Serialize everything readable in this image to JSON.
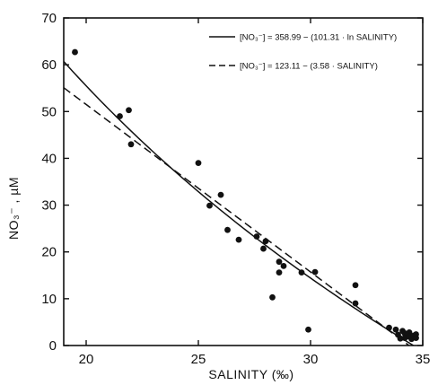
{
  "chart_data": {
    "type": "scatter",
    "xlabel": "SALINITY (‰)",
    "ylabel": "NO₃⁻ , µM",
    "xlim": [
      19,
      35
    ],
    "ylim": [
      0,
      70
    ],
    "xticks": [
      20,
      25,
      30,
      35
    ],
    "yticks": [
      0,
      10,
      20,
      30,
      40,
      50,
      60,
      70
    ],
    "grid": false,
    "legend_position": "top-right",
    "points": [
      {
        "x": 19.5,
        "y": 62.7
      },
      {
        "x": 21.5,
        "y": 49.0
      },
      {
        "x": 21.9,
        "y": 50.3
      },
      {
        "x": 22.0,
        "y": 43.0
      },
      {
        "x": 25.0,
        "y": 39.0
      },
      {
        "x": 25.5,
        "y": 29.9
      },
      {
        "x": 26.0,
        "y": 32.2
      },
      {
        "x": 26.3,
        "y": 24.7
      },
      {
        "x": 26.8,
        "y": 22.6
      },
      {
        "x": 27.6,
        "y": 23.3
      },
      {
        "x": 27.9,
        "y": 20.7
      },
      {
        "x": 28.0,
        "y": 22.3
      },
      {
        "x": 28.3,
        "y": 10.3
      },
      {
        "x": 28.6,
        "y": 15.6
      },
      {
        "x": 28.6,
        "y": 17.9
      },
      {
        "x": 28.8,
        "y": 17.0
      },
      {
        "x": 29.6,
        "y": 15.6
      },
      {
        "x": 29.9,
        "y": 3.4
      },
      {
        "x": 30.2,
        "y": 15.7
      },
      {
        "x": 32.0,
        "y": 12.9
      },
      {
        "x": 32.0,
        "y": 9.0
      },
      {
        "x": 33.5,
        "y": 3.8
      },
      {
        "x": 33.8,
        "y": 3.4
      },
      {
        "x": 33.9,
        "y": 2.3
      },
      {
        "x": 34.0,
        "y": 1.5
      },
      {
        "x": 34.1,
        "y": 3.1
      },
      {
        "x": 34.2,
        "y": 2.6
      },
      {
        "x": 34.2,
        "y": 1.6
      },
      {
        "x": 34.4,
        "y": 2.8
      },
      {
        "x": 34.4,
        "y": 1.9
      },
      {
        "x": 34.5,
        "y": 1.4
      },
      {
        "x": 34.6,
        "y": 2.1
      },
      {
        "x": 34.7,
        "y": 1.6
      },
      {
        "x": 34.7,
        "y": 2.4
      }
    ],
    "fits": [
      {
        "style": "solid",
        "model": "log",
        "intercept": 358.99,
        "slope": 101.31,
        "legend": "[NO₃⁻] = 358.99 − (101.31 · ln SALINITY)"
      },
      {
        "style": "dashed",
        "model": "linear",
        "intercept": 123.11,
        "slope": 3.58,
        "legend": "[NO₃⁻] = 123.11 − (3.58 · SALINITY)"
      }
    ]
  }
}
